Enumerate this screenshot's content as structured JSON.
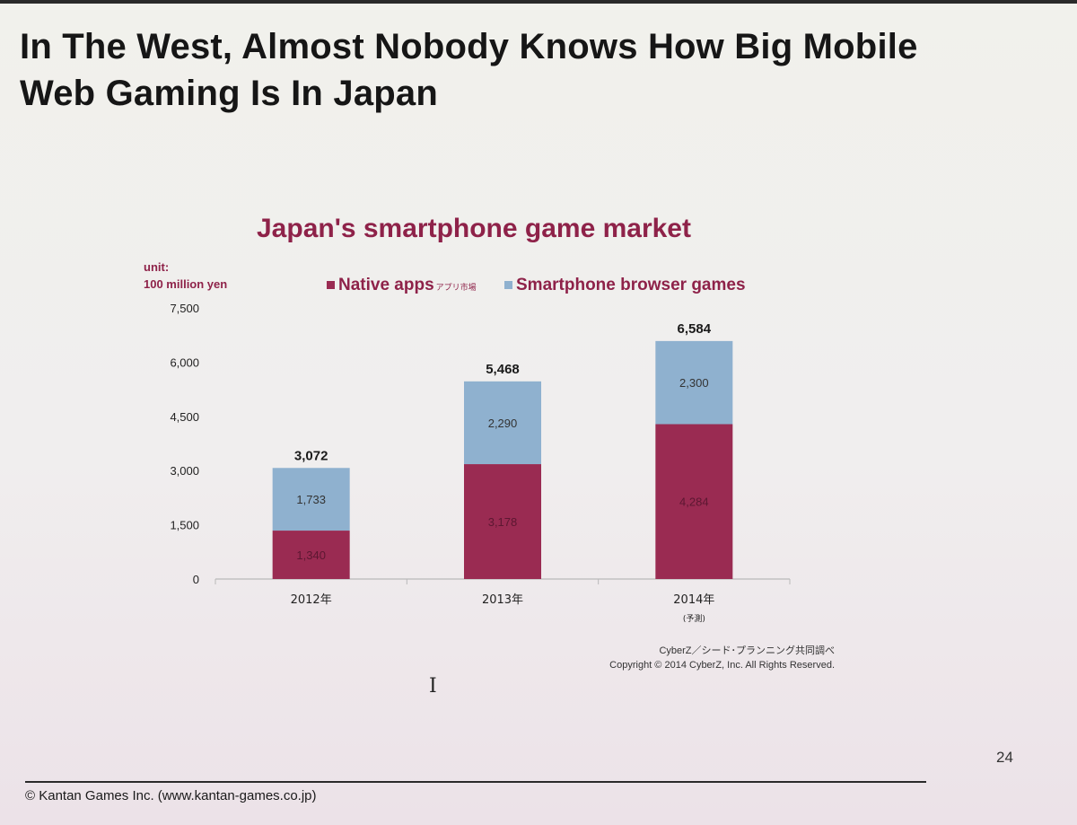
{
  "slide": {
    "title_line1": "In The West, Almost Nobody Knows How Big Mobile",
    "title_line2": "Web Gaming Is In Japan",
    "page_number": "24",
    "footer": "© Kantan Games Inc. (www.kantan-games.co.jp)"
  },
  "chart_data": {
    "type": "bar",
    "stacked": true,
    "title": "Japan's smartphone game market",
    "unit_line1": "unit:",
    "unit_line2": "100 million yen",
    "categories": [
      "2012年",
      "2013年",
      "2014年"
    ],
    "category_notes": [
      "",
      "",
      "(予測)"
    ],
    "series": [
      {
        "name": "Native apps",
        "name_sub": "アプリ市場",
        "color": "#9a2b52",
        "values": [
          1340,
          3178,
          4284
        ]
      },
      {
        "name": "Smartphone browser games",
        "color": "#8fb1cf",
        "values": [
          1733,
          2290,
          2300
        ]
      }
    ],
    "totals": [
      3072,
      5468,
      6584
    ],
    "total_labels": [
      "3,072",
      "5,468",
      "6,584"
    ],
    "segment_labels": [
      [
        "1,340",
        "3,178",
        "4,284"
      ],
      [
        "1,733",
        "2,290",
        "2,300"
      ]
    ],
    "ylim": [
      0,
      7500
    ],
    "yticks": [
      0,
      1500,
      3000,
      4500,
      6000,
      7500
    ],
    "ytick_labels": [
      "0",
      "1,500",
      "3,000",
      "4,500",
      "6,000",
      "7,500"
    ],
    "grid": false,
    "legend": "top",
    "source_line1": "CyberZ／シード･プランニング共同調べ",
    "source_line2": "Copyright © 2014 CyberZ, Inc.  All Rights Reserved."
  }
}
